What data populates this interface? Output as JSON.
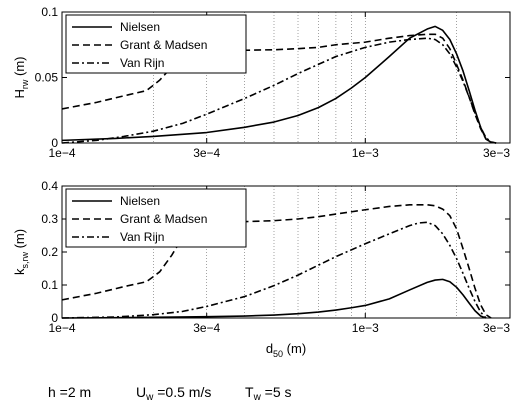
{
  "chart_data": [
    {
      "type": "line",
      "ylabel": {
        "main": "H",
        "sub": "rw",
        "unit": " (m)"
      },
      "xlabel": {
        "main": "",
        "sub": "",
        "unit": ""
      },
      "xscale": "log",
      "xlim": [
        0.0001,
        0.003
      ],
      "ylim": [
        0,
        0.1
      ],
      "xticks": [
        0.0001,
        0.0003,
        0.001,
        0.003
      ],
      "xticklabels": [
        "1e−4",
        "3e−4",
        "1e−3",
        "3e−3"
      ],
      "yticks": [
        0,
        0.05,
        0.1
      ],
      "yticklabels": [
        "0",
        "0.05",
        "0.1"
      ],
      "grid": "x-dotted",
      "legend_position": "top-left",
      "series": [
        {
          "name": "Nielsen",
          "style": "solid",
          "x": [
            0.0001,
            0.00015,
            0.0002,
            0.0003,
            0.0004,
            0.0005,
            0.0006,
            0.0007,
            0.0008,
            0.0009,
            0.001,
            0.0012,
            0.0014,
            0.0016,
            0.0017,
            0.0018,
            0.0019,
            0.002,
            0.0021,
            0.0022,
            0.0023,
            0.0024,
            0.0025,
            0.0026,
            0.0027
          ],
          "y": [
            0.002,
            0.0035,
            0.005,
            0.008,
            0.012,
            0.016,
            0.021,
            0.027,
            0.034,
            0.042,
            0.05,
            0.066,
            0.08,
            0.087,
            0.089,
            0.086,
            0.079,
            0.068,
            0.055,
            0.04,
            0.025,
            0.012,
            0.003,
            0.0005,
            0
          ]
        },
        {
          "name": "Grant & Madsen",
          "style": "dashed",
          "x": [
            0.0001,
            0.00013,
            0.00016,
            0.00019,
            0.00021,
            0.00023,
            0.00025,
            0.00027,
            0.0003,
            0.0004,
            0.0005,
            0.0006,
            0.0007,
            0.0008,
            0.001,
            0.0012,
            0.0014,
            0.0016,
            0.0017,
            0.0018,
            0.0019,
            0.002,
            0.0021,
            0.0022,
            0.0023,
            0.0024,
            0.0025,
            0.0026,
            0.0027
          ],
          "y": [
            0.026,
            0.031,
            0.036,
            0.04,
            0.048,
            0.058,
            0.066,
            0.07,
            0.0705,
            0.0708,
            0.0712,
            0.072,
            0.073,
            0.075,
            0.077,
            0.08,
            0.082,
            0.083,
            0.083,
            0.08,
            0.072,
            0.06,
            0.048,
            0.035,
            0.022,
            0.011,
            0.003,
            0.0005,
            0
          ]
        },
        {
          "name": "Van Rijn",
          "style": "dashdot",
          "x": [
            0.0001,
            0.00013,
            0.00016,
            0.0002,
            0.00025,
            0.0003,
            0.0004,
            0.0005,
            0.0006,
            0.0007,
            0.0008,
            0.001,
            0.0012,
            0.0014,
            0.0016,
            0.0017,
            0.0018,
            0.0019,
            0.002,
            0.0021,
            0.0022,
            0.0023,
            0.0024,
            0.0025,
            0.0026,
            0.0027
          ],
          "y": [
            0.0,
            0.002,
            0.005,
            0.009,
            0.015,
            0.022,
            0.034,
            0.044,
            0.053,
            0.06,
            0.066,
            0.073,
            0.077,
            0.079,
            0.08,
            0.079,
            0.075,
            0.068,
            0.058,
            0.047,
            0.035,
            0.023,
            0.012,
            0.004,
            0.0008,
            0
          ]
        }
      ]
    },
    {
      "type": "line",
      "ylabel": {
        "main": "k",
        "sub": "s,rw",
        "unit": " (m)"
      },
      "xlabel": {
        "main": "d",
        "sub": "50",
        "unit": " (m)"
      },
      "xscale": "log",
      "xlim": [
        0.0001,
        0.003
      ],
      "ylim": [
        0,
        0.4
      ],
      "xticks": [
        0.0001,
        0.0003,
        0.001,
        0.003
      ],
      "xticklabels": [
        "1e−4",
        "3e−4",
        "1e−3",
        "3e−3"
      ],
      "yticks": [
        0,
        0.1,
        0.2,
        0.3,
        0.4
      ],
      "yticklabels": [
        "0",
        "0.1",
        "0.2",
        "0.3",
        "0.4"
      ],
      "grid": "x-dotted",
      "legend_position": "top-left",
      "series": [
        {
          "name": "Nielsen",
          "style": "solid",
          "x": [
            0.0001,
            0.00015,
            0.0002,
            0.0003,
            0.0004,
            0.0005,
            0.0006,
            0.0007,
            0.0008,
            0.0009,
            0.001,
            0.0012,
            0.0014,
            0.0016,
            0.0017,
            0.0018,
            0.0019,
            0.002,
            0.0021,
            0.0022,
            0.0023,
            0.0024,
            0.0025
          ],
          "y": [
            0.0,
            0.001,
            0.002,
            0.004,
            0.006,
            0.009,
            0.013,
            0.018,
            0.024,
            0.031,
            0.038,
            0.058,
            0.085,
            0.108,
            0.115,
            0.117,
            0.11,
            0.093,
            0.07,
            0.045,
            0.022,
            0.006,
            0
          ]
        },
        {
          "name": "Grant & Madsen",
          "style": "dashed",
          "x": [
            0.0001,
            0.00013,
            0.00016,
            0.00019,
            0.00021,
            0.00023,
            0.00025,
            0.00027,
            0.0003,
            0.0004,
            0.0005,
            0.0006,
            0.0007,
            0.0008,
            0.001,
            0.0012,
            0.0014,
            0.0016,
            0.0017,
            0.0018,
            0.0019,
            0.002,
            0.0021,
            0.0022,
            0.0023,
            0.0024,
            0.0025,
            0.0026
          ],
          "y": [
            0.055,
            0.075,
            0.095,
            0.11,
            0.14,
            0.19,
            0.245,
            0.28,
            0.29,
            0.292,
            0.295,
            0.3,
            0.307,
            0.315,
            0.328,
            0.338,
            0.343,
            0.343,
            0.34,
            0.33,
            0.31,
            0.27,
            0.21,
            0.15,
            0.09,
            0.04,
            0.01,
            0
          ]
        },
        {
          "name": "Van Rijn",
          "style": "dashdot",
          "x": [
            0.0001,
            0.00015,
            0.0002,
            0.00025,
            0.0003,
            0.0004,
            0.0005,
            0.0006,
            0.0007,
            0.0008,
            0.001,
            0.0012,
            0.0014,
            0.0015,
            0.0016,
            0.0017,
            0.0018,
            0.0019,
            0.002,
            0.0021,
            0.0022,
            0.0023,
            0.0024,
            0.0025
          ],
          "y": [
            0.0,
            0.003,
            0.01,
            0.02,
            0.035,
            0.065,
            0.098,
            0.13,
            0.16,
            0.186,
            0.225,
            0.255,
            0.28,
            0.288,
            0.29,
            0.28,
            0.255,
            0.22,
            0.18,
            0.135,
            0.09,
            0.05,
            0.018,
            0
          ]
        }
      ]
    }
  ],
  "parameters": [
    {
      "sym": "h",
      "sub": "",
      "text": " =2 m"
    },
    {
      "sym": "U",
      "sub": "w",
      "text": " =0.5 m/s"
    },
    {
      "sym": "T",
      "sub": "w",
      "text": " =5 s"
    }
  ]
}
